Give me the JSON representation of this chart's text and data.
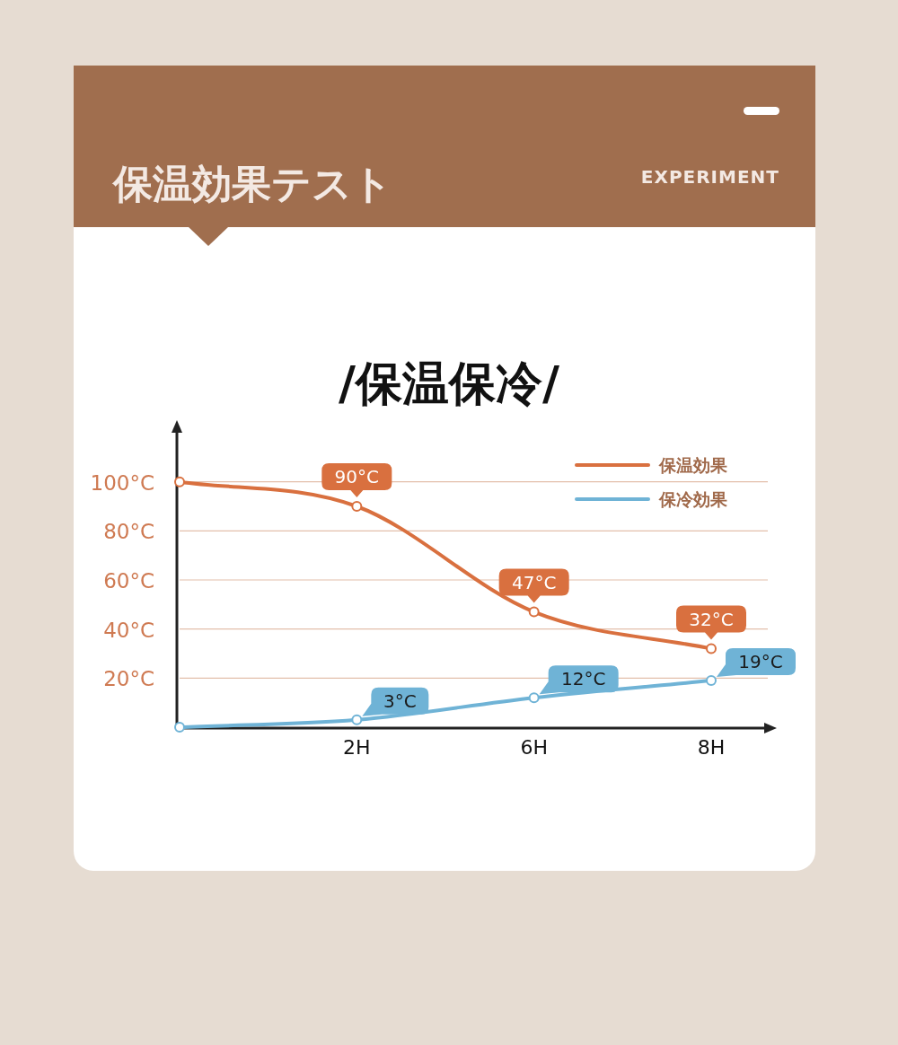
{
  "chart_data": {
    "type": "line",
    "title": "保温効果テスト",
    "subtitle": "/保温保冷/",
    "annotations": [
      "EXPERIMENT"
    ],
    "categories": [
      null,
      "2H",
      "6H",
      "8H"
    ],
    "series": [
      {
        "name": "保温効果",
        "color": "#d9703f",
        "values": [
          100,
          90,
          47,
          32
        ],
        "value_labels": [
          null,
          "90°C",
          "47°C",
          "32°C"
        ]
      },
      {
        "name": "保冷効果",
        "color": "#6fb3d6",
        "values": [
          0,
          3,
          12,
          19
        ],
        "value_labels": [
          null,
          "3°C",
          "12°C",
          "19°C"
        ]
      }
    ],
    "ylim": [
      0,
      120
    ],
    "yticks": [
      {
        "value": 20,
        "label": "20°C"
      },
      {
        "value": 40,
        "label": "40°C"
      },
      {
        "value": 60,
        "label": "60°C"
      },
      {
        "value": 80,
        "label": "80°C"
      },
      {
        "value": 100,
        "label": "100°C"
      }
    ],
    "grid": "y",
    "legend": "top right",
    "marker": "circle"
  }
}
